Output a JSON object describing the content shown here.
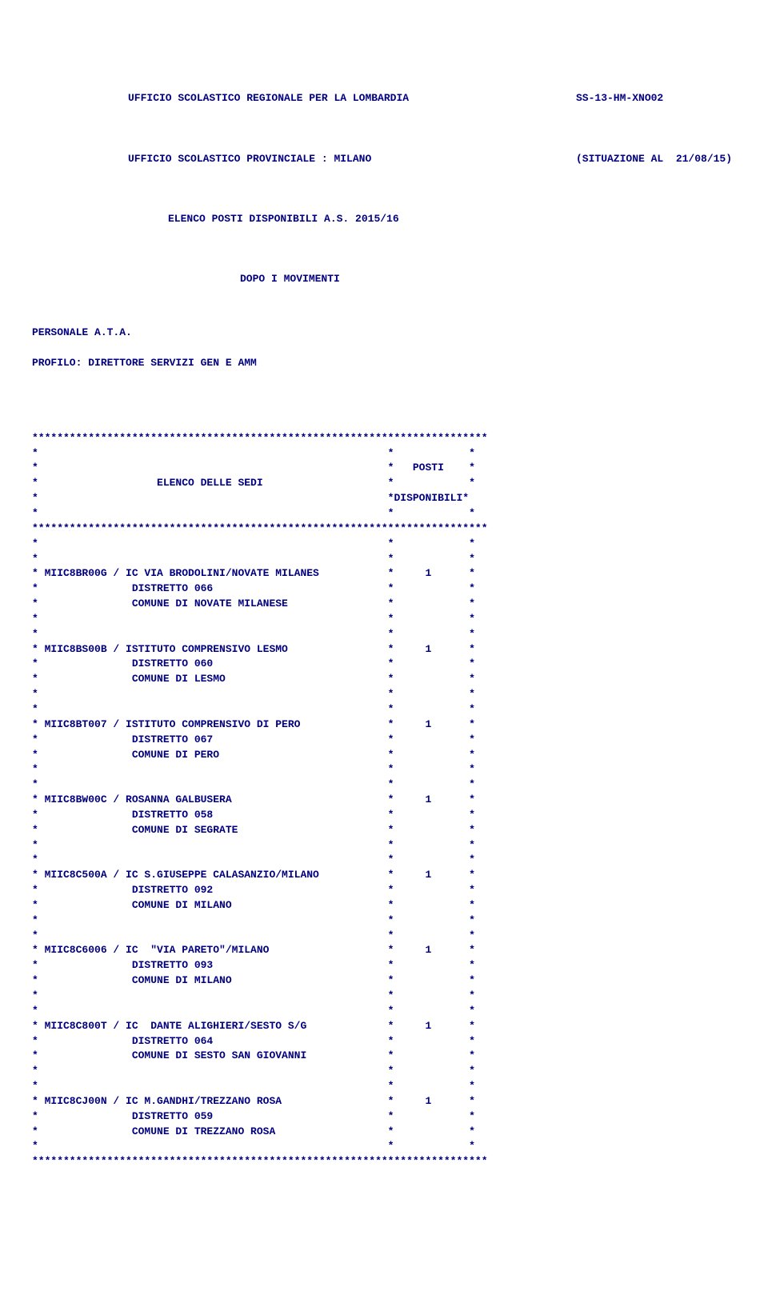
{
  "header": {
    "line1_left": "UFFICIO SCOLASTICO REGIONALE PER LA LOMBARDIA",
    "line1_right": "SS-13-HM-XNO02",
    "line2_left": "UFFICIO SCOLASTICO PROVINCIALE : MILANO",
    "line2_right": "(SITUAZIONE AL  21/08/15)",
    "line3": "ELENCO POSTI DISPONIBILI A.S. 2015/16",
    "line4": "DOPO I MOVIMENTI"
  },
  "section": {
    "personale": "PERSONALE A.T.A.",
    "profilo": "PROFILO: DIRETTORE SERVIZI GEN E AMM"
  },
  "tablehdr": {
    "posti": "POSTI",
    "elenco": "ELENCO DELLE SEDI",
    "disp": "*DISPONIBILI*"
  },
  "entries": [
    {
      "code": "MIIC8BR00G",
      "name": "IC VIA BRODOLINI/NOVATE MILANES",
      "posti": "1",
      "distretto": "DISTRETTO 066",
      "comune": "COMUNE DI NOVATE MILANESE"
    },
    {
      "code": "MIIC8BS00B",
      "name": "ISTITUTO COMPRENSIVO LESMO",
      "posti": "1",
      "distretto": "DISTRETTO 060",
      "comune": "COMUNE DI LESMO"
    },
    {
      "code": "MIIC8BT007",
      "name": "ISTITUTO COMPRENSIVO DI PERO",
      "posti": "1",
      "distretto": "DISTRETTO 067",
      "comune": "COMUNE DI PERO"
    },
    {
      "code": "MIIC8BW00C",
      "name": "ROSANNA GALBUSERA",
      "posti": "1",
      "distretto": "DISTRETTO 058",
      "comune": "COMUNE DI SEGRATE"
    },
    {
      "code": "MIIC8C500A",
      "name": "IC S.GIUSEPPE CALASANZIO/MILANO",
      "posti": "1",
      "distretto": "DISTRETTO 092",
      "comune": "COMUNE DI MILANO"
    },
    {
      "code": "MIIC8C6006",
      "name": "IC  \"VIA PARETO\"/MILANO",
      "posti": "1",
      "distretto": "DISTRETTO 093",
      "comune": "COMUNE DI MILANO"
    },
    {
      "code": "MIIC8C800T",
      "name": "IC  DANTE ALIGHIERI/SESTO S/G",
      "posti": "1",
      "distretto": "DISTRETTO 064",
      "comune": "COMUNE DI SESTO SAN GIOVANNI"
    },
    {
      "code": "MIIC8CJ00N",
      "name": "IC M.GANDHI/TREZZANO ROSA",
      "posti": "1",
      "distretto": "DISTRETTO 059",
      "comune": "COMUNE DI TREZZANO ROSA"
    }
  ],
  "layout": {
    "star_count": 73,
    "col1_width": 56,
    "col2_width": 4,
    "col3_width": 11
  }
}
